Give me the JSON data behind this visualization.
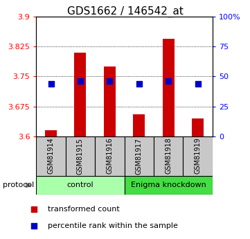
{
  "title": "GDS1662 / 146542_at",
  "samples": [
    "GSM81914",
    "GSM81915",
    "GSM81916",
    "GSM81917",
    "GSM81918",
    "GSM81919"
  ],
  "red_values": [
    3.615,
    3.81,
    3.775,
    3.655,
    3.845,
    3.645
  ],
  "blue_percentiles": [
    44,
    46,
    46,
    44,
    46,
    44
  ],
  "ylim_left": [
    3.6,
    3.9
  ],
  "ylim_right": [
    0,
    100
  ],
  "yticks_left": [
    3.6,
    3.675,
    3.75,
    3.825,
    3.9
  ],
  "yticks_right": [
    0,
    25,
    50,
    75,
    100
  ],
  "ytick_labels_left": [
    "3.6",
    "3.675",
    "3.75",
    "3.825",
    "3.9"
  ],
  "ytick_labels_right": [
    "0",
    "25",
    "50",
    "75",
    "100%"
  ],
  "baseline": 3.6,
  "bar_color": "#CC0000",
  "dot_color": "#0000CC",
  "bar_width": 0.4,
  "dot_size": 35,
  "sample_box_color": "#C8C8C8",
  "control_color": "#AAFFAA",
  "enigma_color": "#44DD44",
  "title_fontsize": 11,
  "tick_fontsize": 8,
  "label_fontsize": 8,
  "legend_fontsize": 8,
  "sample_fontsize": 7
}
